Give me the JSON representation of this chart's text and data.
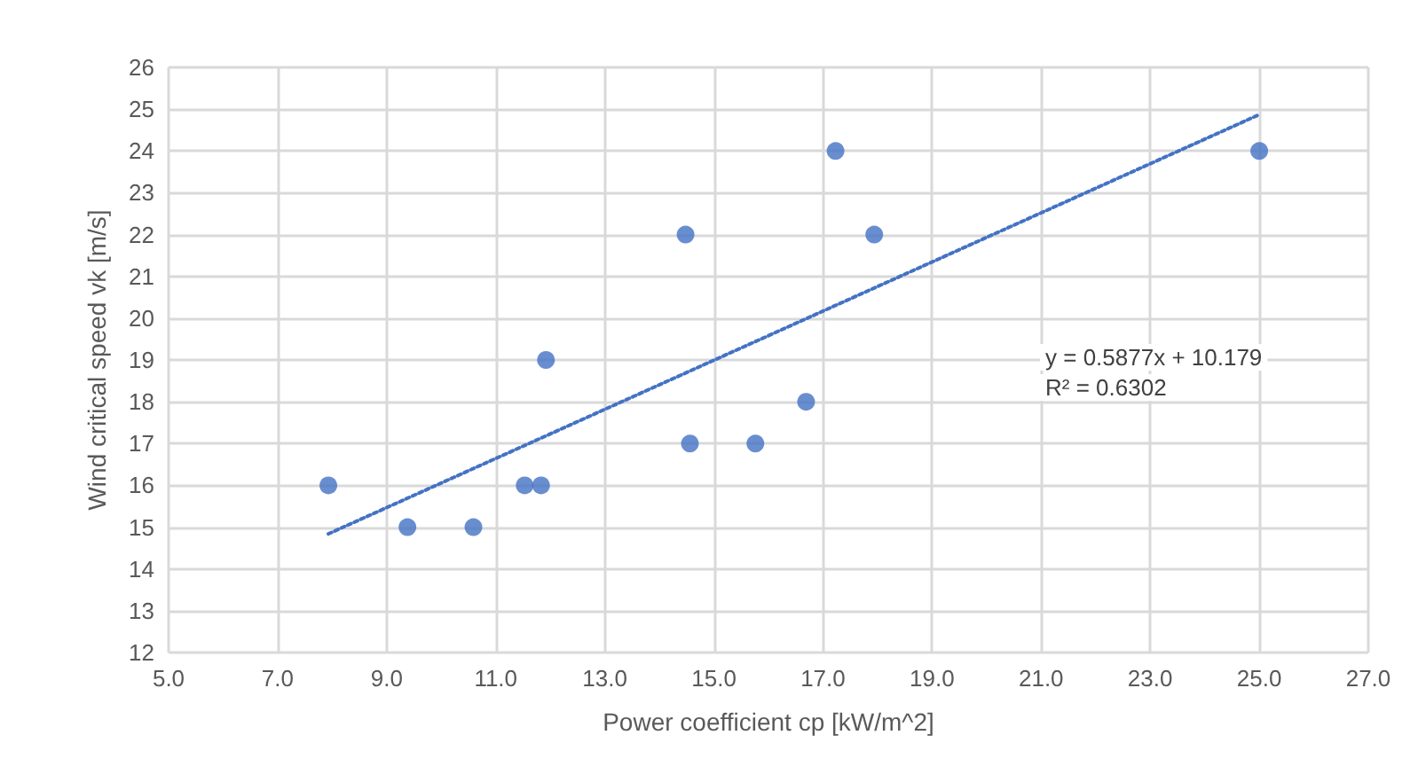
{
  "chart_data": {
    "type": "scatter",
    "xlabel": "Power coefficient cp [kW/m^2]",
    "ylabel": "Wind critical speed vk [m/s]",
    "series": [
      {
        "color": "#4472c4",
        "marker": "circle",
        "x": [
          7.93,
          9.38,
          10.59,
          11.53,
          11.83,
          11.92,
          14.48,
          14.56,
          15.76,
          16.69,
          17.23,
          17.94,
          25.0
        ],
        "values": [
          16,
          15,
          15,
          16,
          16,
          19,
          22,
          17,
          17,
          18,
          24,
          22,
          24
        ]
      },
      {
        "type": "line",
        "color": "#4472c4",
        "marker": "none",
        "line_style": "dotted",
        "x": [
          7.93,
          25.0
        ],
        "values": [
          14.84,
          24.87
        ]
      }
    ],
    "annotations": [
      "y = 0.5877x + 10.179",
      "R² = 0.6302"
    ],
    "xlim": [
      5,
      27
    ],
    "xticks": [
      {
        "value": 5,
        "label": "5.0"
      },
      {
        "value": 7,
        "label": "7.0"
      },
      {
        "value": 9,
        "label": "9.0"
      },
      {
        "value": 11,
        "label": "11.0"
      },
      {
        "value": 13,
        "label": "13.0"
      },
      {
        "value": 15,
        "label": "15.0"
      },
      {
        "value": 17,
        "label": "17.0"
      },
      {
        "value": 19,
        "label": "19.0"
      },
      {
        "value": 21,
        "label": "21.0"
      },
      {
        "value": 23,
        "label": "23.0"
      },
      {
        "value": 25,
        "label": "25.0"
      },
      {
        "value": 27,
        "label": "27.0"
      }
    ],
    "ylim": [
      12,
      26
    ],
    "yticks": [
      12,
      13,
      14,
      15,
      16,
      17,
      18,
      19,
      20,
      21,
      22,
      23,
      24,
      25,
      26
    ],
    "grid": true
  }
}
